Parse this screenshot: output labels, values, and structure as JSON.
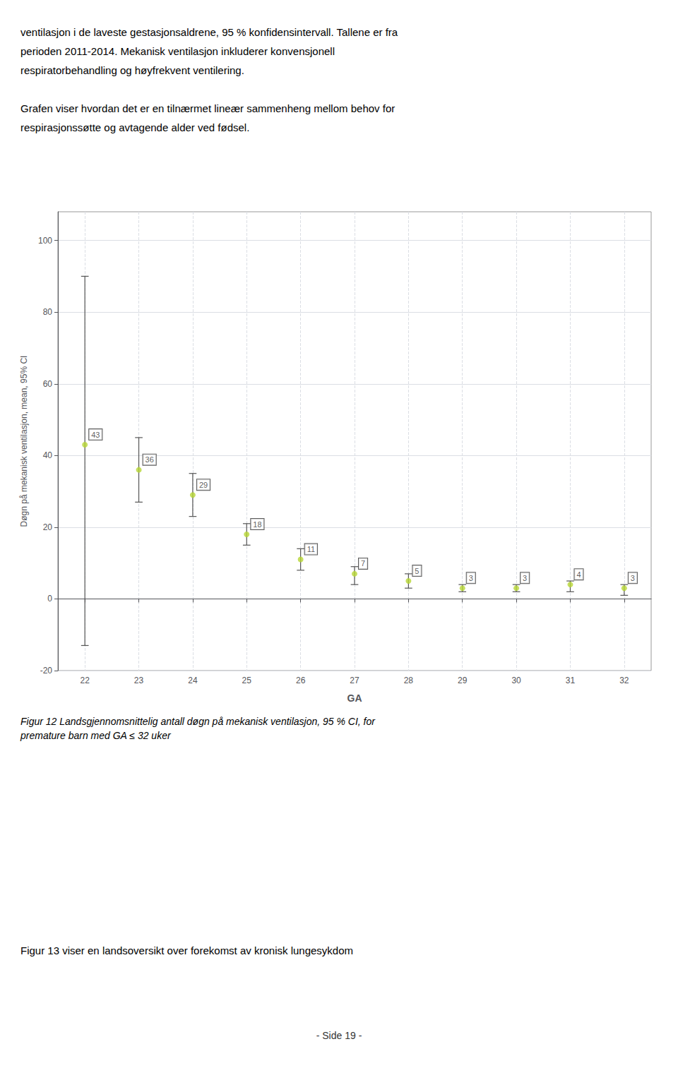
{
  "chart_data": {
    "type": "scatter",
    "header": [
      [
        "ventilasjon i de laveste gestasjonsaldrene, 95 % konfidensintervall. Tallene er fra",
        "perioden 2011-2014. Mekanisk ventilasjon inkluderer konvensjonell",
        "respiratorbehandling og høyfrekvent ventilering."
      ],
      [
        "Grafen viser hvordan det er en tilnærmet lineær sammenheng mellom behov for",
        "respirasjonssøtte og avtagende alder ved fødsel."
      ]
    ],
    "x": [
      22,
      23,
      24,
      25,
      26,
      27,
      28,
      29,
      30,
      31,
      32
    ],
    "values": [
      43,
      36,
      29,
      18,
      11,
      7,
      5,
      3,
      3,
      4,
      3
    ],
    "ci_upper": [
      90,
      45,
      35,
      21,
      14,
      9,
      7,
      4,
      4,
      5,
      4
    ],
    "ci_lower": [
      -13,
      27,
      23,
      15,
      8,
      4,
      3,
      2,
      2,
      2,
      1
    ],
    "data_labels": true,
    "xlabel": "GA",
    "ylabel": "Døgn på mekanisk ventilasjon, mean, 95% CI",
    "xlim": [
      21.5,
      32.5
    ],
    "xticks": [
      22,
      23,
      24,
      25,
      26,
      27,
      28,
      29,
      30,
      31,
      32
    ],
    "ylim": [
      -20,
      108
    ],
    "yticks": [
      -20,
      0,
      20,
      40,
      60,
      80,
      100
    ],
    "grid": true,
    "caption": "Figur 12 Landsgjennomsnittelig antall døgn på mekanisk ventilasjon, 95 % CI, for\npremature barn med GA ≤ 32 uker",
    "footer": "Figur 13 viser en landsoversikt over forekomst av kronisk lungesykdom",
    "page_number": "- Side 19 -"
  }
}
